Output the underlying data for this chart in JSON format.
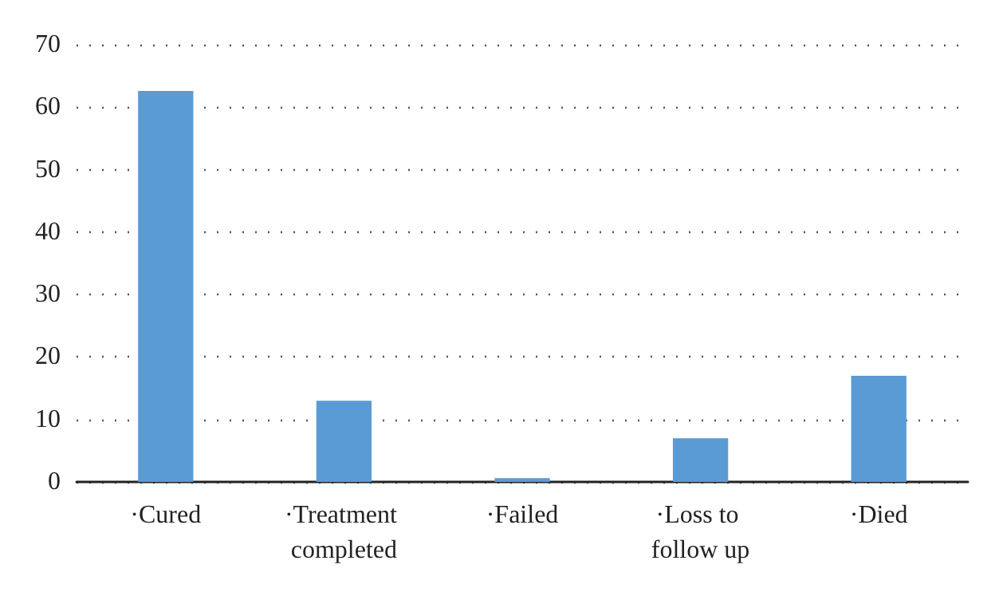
{
  "chart_data": {
    "type": "bar",
    "categories": [
      "·Cured",
      "·Treatment completed",
      "·Failed",
      "·Loss to follow up",
      "·Died"
    ],
    "values": [
      62.6,
      13,
      0.6,
      7,
      17
    ],
    "color": "#5b9bd5",
    "ylim": [
      0,
      70
    ],
    "yticks": [
      0,
      10,
      20,
      30,
      40,
      50,
      60,
      70
    ],
    "grid": "y"
  }
}
